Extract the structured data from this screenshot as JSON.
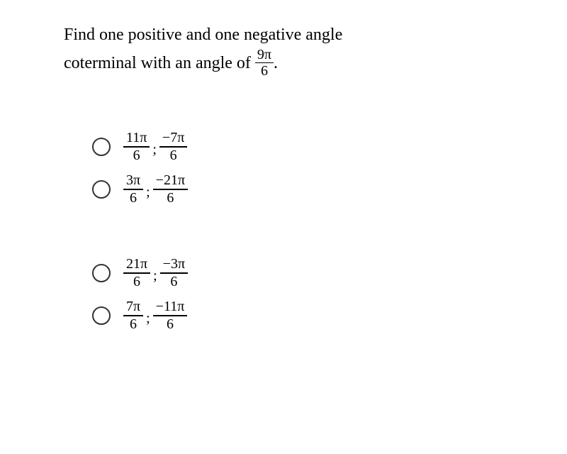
{
  "question": {
    "line1": "Find one positive and one negative angle",
    "line2_before": "coterminal with an angle of ",
    "frac_num": "9π",
    "frac_den": "6",
    "line2_after": "."
  },
  "options": [
    {
      "frac1_num": "11π",
      "frac1_den": "6",
      "sep": ";",
      "frac2_num": "−7π",
      "frac2_den": "6"
    },
    {
      "frac1_num": "3π",
      "frac1_den": "6",
      "sep": ";",
      "frac2_num": "−21π",
      "frac2_den": "6"
    },
    {
      "frac1_num": "21π",
      "frac1_den": "6",
      "sep": ";",
      "frac2_num": "−3π",
      "frac2_den": "6"
    },
    {
      "frac1_num": "7π",
      "frac1_den": "6",
      "sep": ";",
      "frac2_num": "−11π",
      "frac2_den": "6"
    }
  ],
  "styling": {
    "background_color": "#ffffff",
    "text_color": "#000000",
    "question_fontsize": 24,
    "option_fontsize": 20,
    "radio_size": 26,
    "radio_border_color": "#333333",
    "font_family": "Georgia, Times New Roman, serif"
  }
}
